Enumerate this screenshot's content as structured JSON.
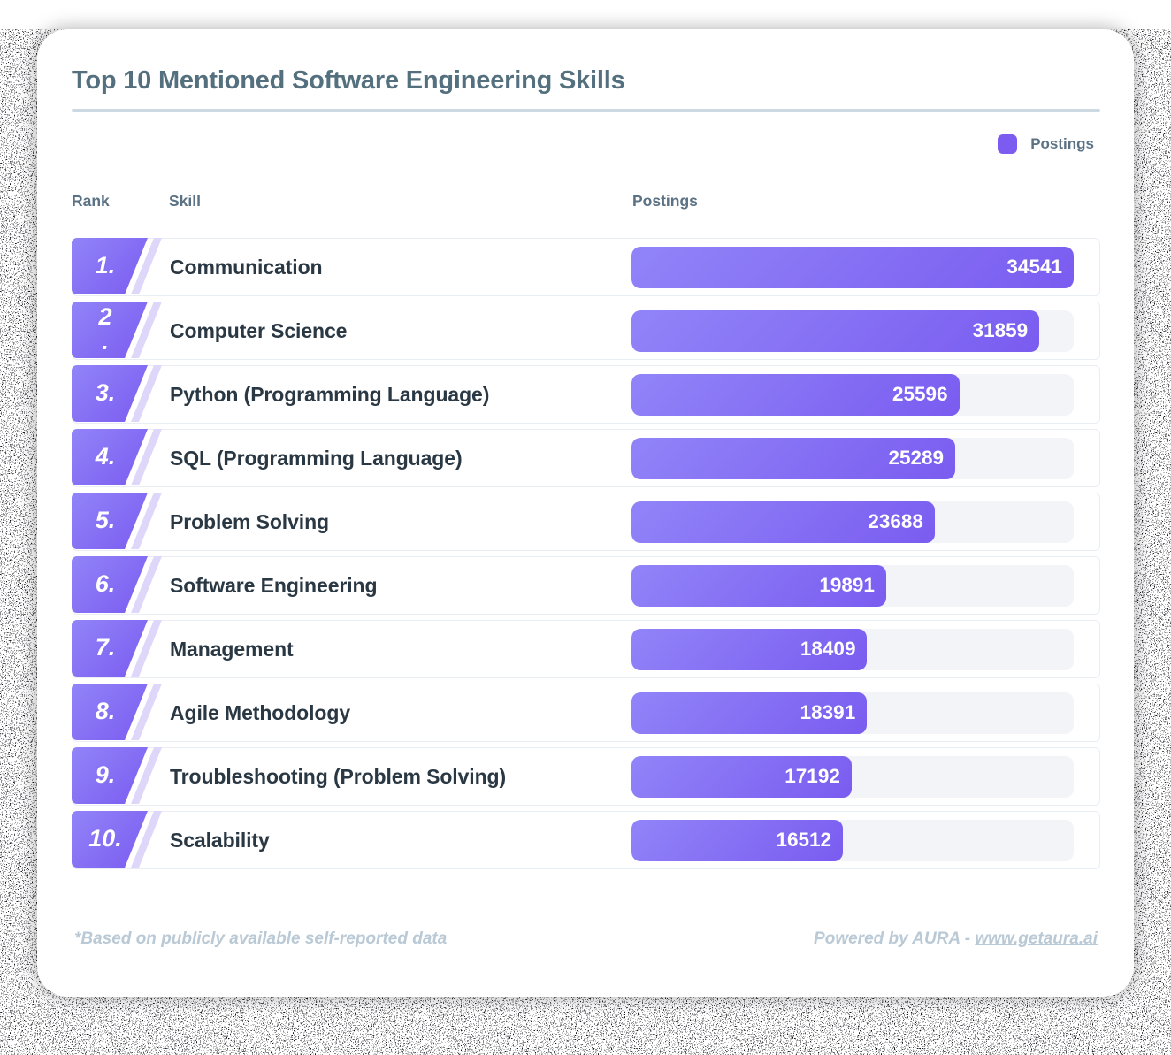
{
  "title": "Top 10 Mentioned Software Engineering Skills",
  "legend": {
    "label": "Postings",
    "swatch_color": "#7c5cf0"
  },
  "table": {
    "headers": {
      "rank": "Rank",
      "skill": "Skill",
      "postings": "Postings"
    },
    "rows": [
      {
        "rank_display": "1.",
        "skill": "Communication",
        "value": "34541"
      },
      {
        "rank_display": "2\n.",
        "skill": "Computer Science",
        "value": "31859"
      },
      {
        "rank_display": "3.",
        "skill": "Python (Programming Language)",
        "value": "25596"
      },
      {
        "rank_display": "4.",
        "skill": "SQL (Programming Language)",
        "value": "25289"
      },
      {
        "rank_display": "5.",
        "skill": "Problem Solving",
        "value": "23688"
      },
      {
        "rank_display": "6.",
        "skill": "Software Engineering",
        "value": "19891"
      },
      {
        "rank_display": "7.",
        "skill": "Management",
        "value": "18409"
      },
      {
        "rank_display": "8.",
        "skill": "Agile Methodology",
        "value": "18391"
      },
      {
        "rank_display": "9.",
        "skill": "Troubleshooting (Problem Solving)",
        "value": "17192"
      },
      {
        "rank_display": "10.",
        "skill": "Scalability",
        "value": "16512"
      }
    ]
  },
  "chart_data": {
    "type": "bar",
    "orientation": "horizontal",
    "title": "Top 10 Mentioned Software Engineering Skills",
    "series_name": "Postings",
    "categories": [
      "Communication",
      "Computer Science",
      "Python (Programming Language)",
      "SQL (Programming Language)",
      "Problem Solving",
      "Software Engineering",
      "Management",
      "Agile Methodology",
      "Troubleshooting (Problem Solving)",
      "Scalability"
    ],
    "values": [
      34541,
      31859,
      25596,
      25289,
      23688,
      19891,
      18409,
      18391,
      17192,
      16512
    ],
    "xlim": [
      0,
      34541
    ],
    "legend_position": "top-right",
    "grid": false,
    "bar_color": "#7c5cf0"
  },
  "footer": {
    "note": "*Based on publicly available self-reported data",
    "powered_prefix": "Powered by AURA - ",
    "link_text": "www.getaura.ai"
  },
  "colors": {
    "accent": "#7c5cf0",
    "bar_gradient_start": "#9184f8",
    "bar_gradient_end": "#7a5cf0",
    "badge_stripe": "#ded7f9",
    "bar_track": "#f3f4f7",
    "title_text": "#54707f",
    "header_text": "#5b7284",
    "skill_text": "#2a3844",
    "footer_text": "#b9c9d5",
    "divider": "#ccd9e2",
    "row_border": "#e9eef4"
  }
}
